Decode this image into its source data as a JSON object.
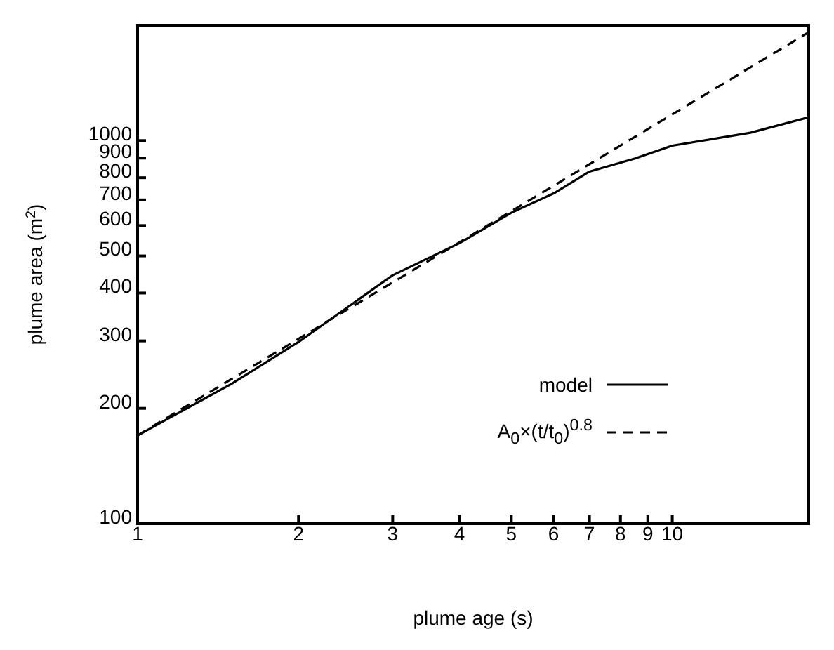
{
  "chart_data": {
    "type": "line",
    "xlabel": "plume age (s)",
    "ylabel": "plume area (m$^{2}$)",
    "log": "xy",
    "xlim": [
      1,
      18
    ],
    "xticks": [
      1,
      2,
      3,
      4,
      5,
      6,
      7,
      8,
      9,
      10
    ],
    "ylim": [
      100,
      2000
    ],
    "yticks": [
      100,
      200,
      300,
      400,
      500,
      600,
      700,
      800,
      900,
      1000
    ],
    "legend": "bottom right",
    "marker": "none",
    "series": [
      {
        "name": "model",
        "color": "#000000",
        "line_style": "solid",
        "x": [
          1,
          1.5,
          2,
          3,
          4,
          5,
          6,
          7,
          8.5,
          10,
          14,
          18
        ],
        "values": [
          170,
          232,
          298,
          445,
          540,
          648,
          728,
          830,
          897,
          970,
          1048,
          1150
        ]
      },
      {
        "name": "A$_{0}$×(t/t$_{0}$)$^{0.8}$",
        "color": "#000000",
        "line_style": "dashed",
        "x": [
          1,
          5,
          18
        ],
        "values": [
          170,
          654,
          1918
        ]
      }
    ]
  }
}
